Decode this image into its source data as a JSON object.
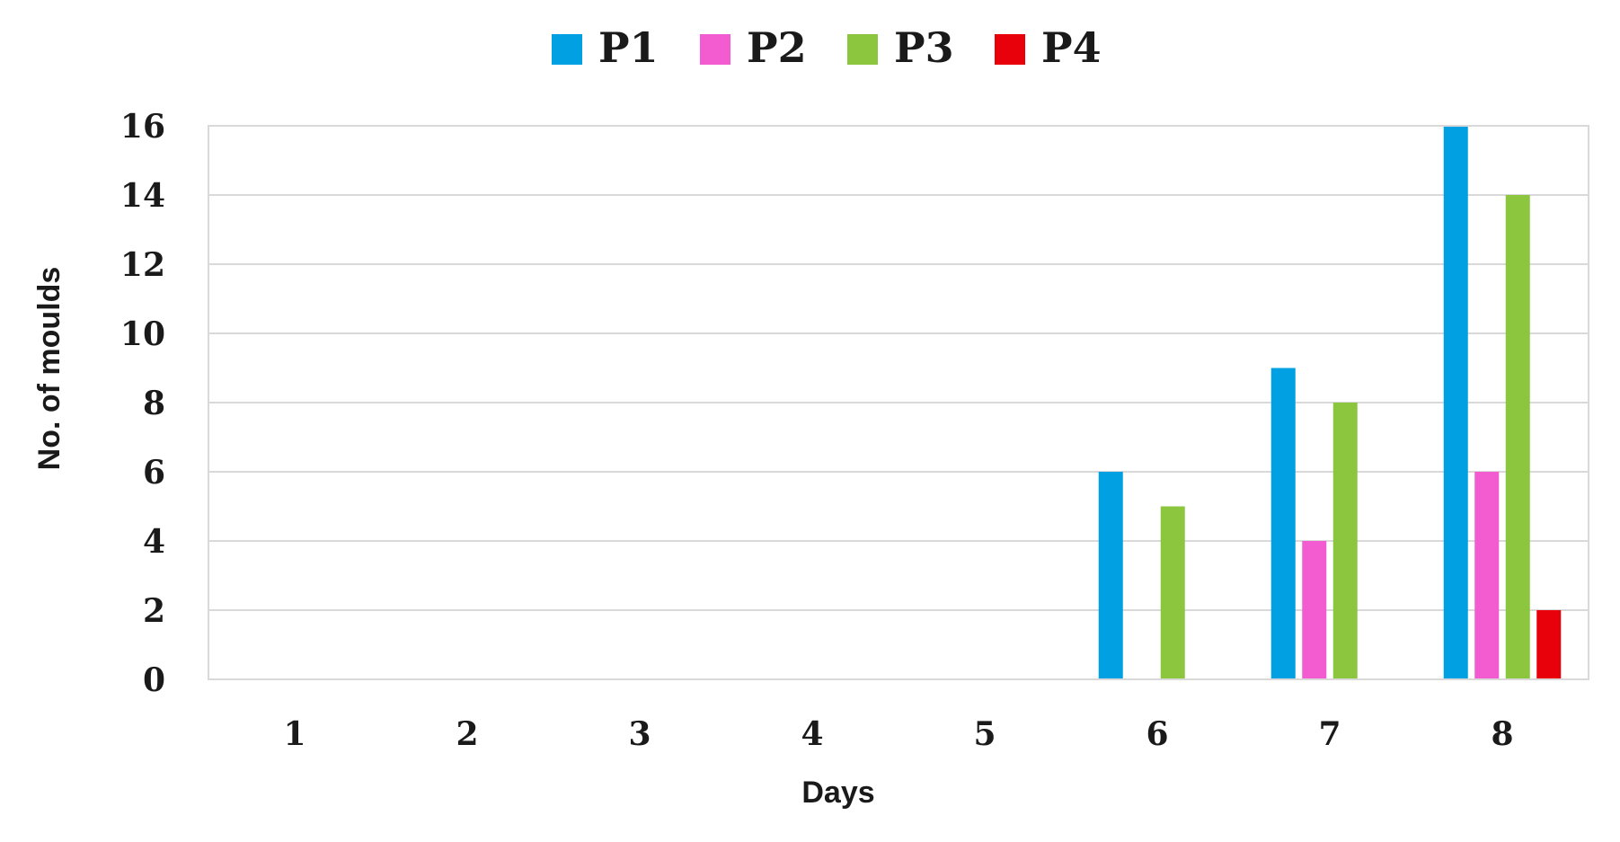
{
  "chart_data": {
    "type": "bar",
    "categories": [
      "1",
      "2",
      "3",
      "4",
      "5",
      "6",
      "7",
      "8"
    ],
    "series": [
      {
        "name": "P1",
        "color": "#00A0E3",
        "values": [
          0,
          0,
          0,
          0,
          0,
          6,
          9,
          16
        ]
      },
      {
        "name": "P2",
        "color": "#F25CD0",
        "values": [
          0,
          0,
          0,
          0,
          0,
          0,
          4,
          6
        ]
      },
      {
        "name": "P3",
        "color": "#8CC63F",
        "values": [
          0,
          0,
          0,
          0,
          0,
          5,
          8,
          14
        ]
      },
      {
        "name": "P4",
        "color": "#E8000B",
        "values": [
          0,
          0,
          0,
          0,
          0,
          0,
          0,
          2
        ]
      }
    ],
    "xlabel": "Days",
    "ylabel": "No. of moulds",
    "ylim": [
      0,
      16
    ],
    "yticks": [
      "0",
      "2",
      "4",
      "6",
      "8",
      "10",
      "12",
      "14",
      "16"
    ],
    "grid": true,
    "legend_position": "top-center"
  }
}
